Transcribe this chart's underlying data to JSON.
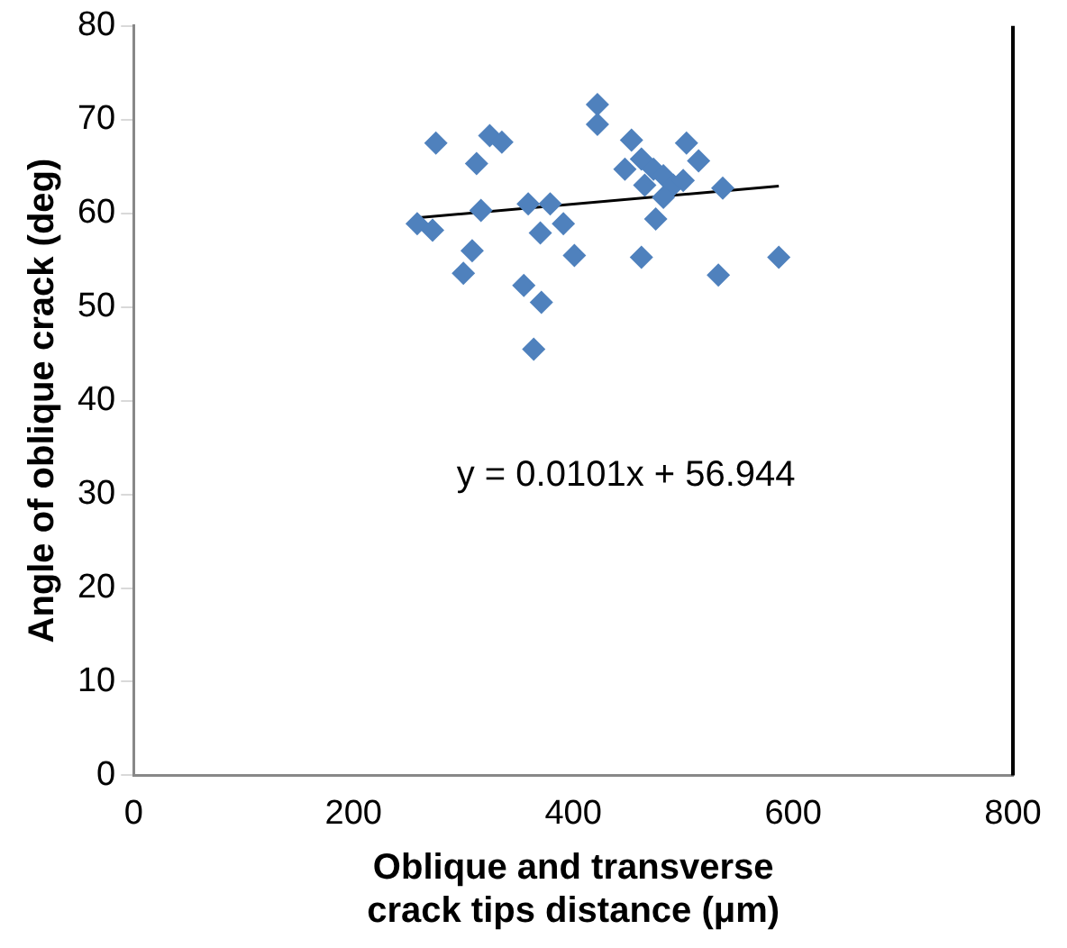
{
  "chart_data": {
    "type": "scatter",
    "xlabel": "Oblique and transverse crack tips distance (μm)",
    "ylabel": "Angle of oblique crack (deg)",
    "xlim": [
      0,
      800
    ],
    "xticks": [
      0,
      200,
      400,
      600,
      800
    ],
    "ylim": [
      0,
      80
    ],
    "yticks": [
      0,
      10,
      20,
      30,
      40,
      50,
      60,
      70,
      80
    ],
    "grid": false,
    "legend": false,
    "marker": "diamond",
    "annotations": [
      "y = 0.0101x + 56.944"
    ],
    "series": [
      {
        "color": "#4f81bd",
        "x": [
          258,
          272,
          275,
          324,
          335,
          312,
          316,
          308,
          300,
          355,
          371,
          359,
          379,
          370,
          391,
          401,
          422,
          422,
          453,
          447,
          462,
          473,
          465,
          482,
          491,
          500,
          482,
          475,
          462,
          503,
          514,
          536,
          532,
          587,
          364
        ],
        "values": [
          58.9,
          58.2,
          67.5,
          68.3,
          67.6,
          65.3,
          60.3,
          56,
          53.6,
          52.3,
          50.5,
          61,
          61,
          57.9,
          58.9,
          55.5,
          71.6,
          69.5,
          67.8,
          64.7,
          65.8,
          64.7,
          63,
          64,
          63,
          63.5,
          61.7,
          59.4,
          55.3,
          67.5,
          65.6,
          62.7,
          53.4,
          55.3,
          45.5
        ]
      },
      {
        "type": "line",
        "color": "#000000",
        "marker": "none",
        "x": [
          255,
          587
        ],
        "values": [
          59.5,
          62.9
        ]
      }
    ]
  }
}
